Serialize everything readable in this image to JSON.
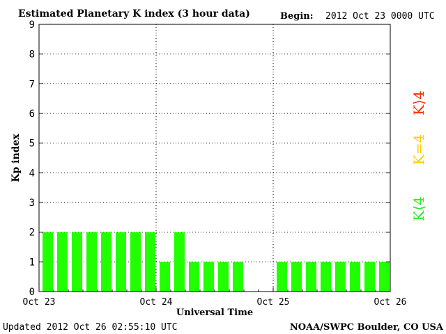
{
  "header": {
    "title": "Estimated Planetary K index (3 hour data)",
    "begin_label": "Begin:",
    "begin_value": "2012 Oct 23 0000 UTC"
  },
  "footer": {
    "updated": "Updated 2012 Oct 26 02:55:10 UTC",
    "source": "NOAA/SWPC Boulder, CO USA"
  },
  "legend": {
    "high": {
      "label": "K⟩4",
      "color": "#ff2a00"
    },
    "mid": {
      "label": "K=4",
      "color": "#ffcc00"
    },
    "low": {
      "label": "K⟨4",
      "color": "#22ee22"
    }
  },
  "chart_data": {
    "type": "bar",
    "title": "Estimated Planetary K index (3 hour data)",
    "xlabel": "Universal Time",
    "ylabel": "Kp index",
    "ylim": [
      0,
      9
    ],
    "y_ticks": [
      "0",
      "1",
      "2",
      "3",
      "4",
      "5",
      "6",
      "7",
      "8",
      "9"
    ],
    "x_ticks": [
      "Oct 23",
      "Oct 24",
      "Oct 25",
      "Oct 26"
    ],
    "slots_per_day": 8,
    "bar_color": "#22ff00",
    "grid": true,
    "values": [
      2,
      2,
      2,
      2,
      2,
      2,
      2,
      2,
      1,
      2,
      1,
      1,
      1,
      1,
      null,
      null,
      1,
      1,
      1,
      1,
      1,
      1,
      1,
      1
    ]
  }
}
